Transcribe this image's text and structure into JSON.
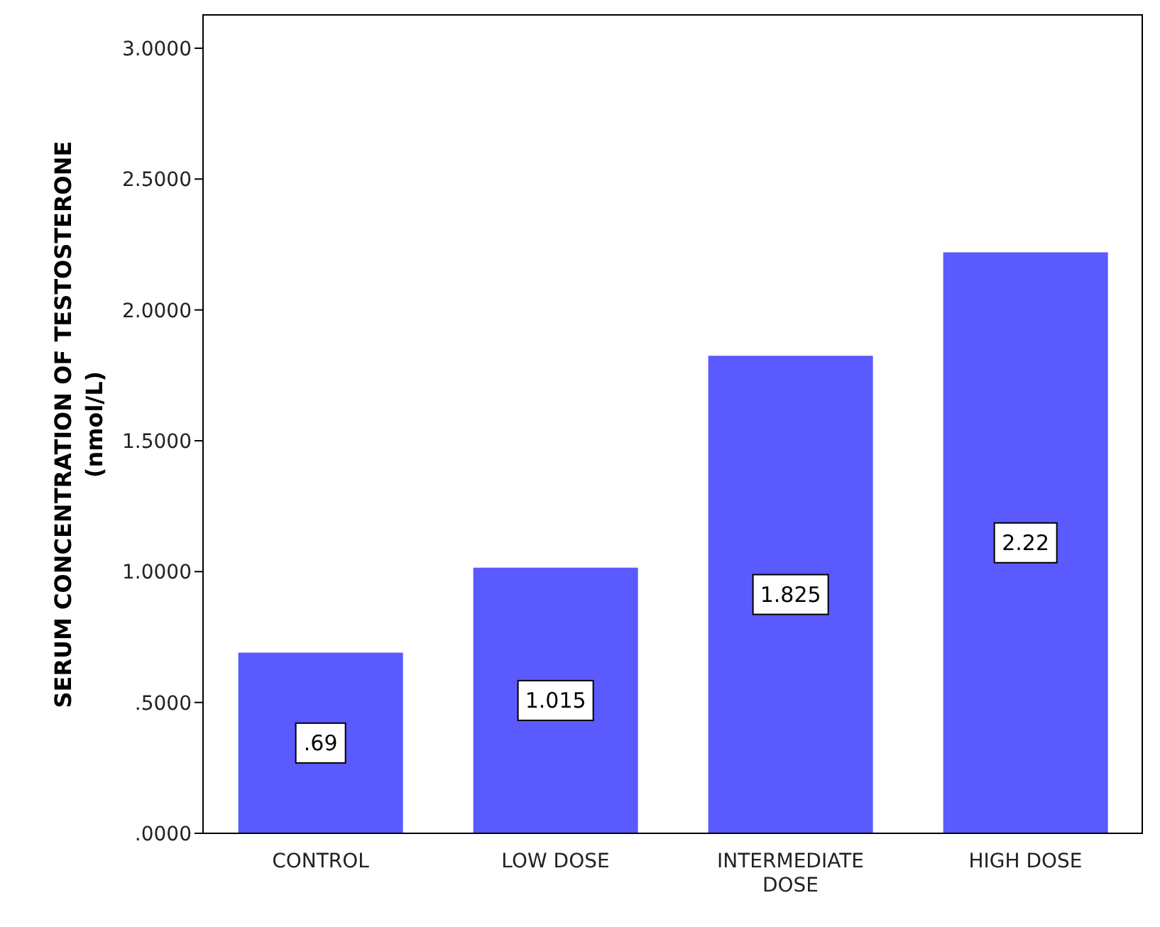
{
  "chart_data": {
    "type": "bar",
    "ylabel": "SERUM CONCENTRATION OF TESTOSTERONE (nmol/L)",
    "categories": [
      "CONTROL",
      "LOW DOSE",
      "INTERMEDIATE DOSE",
      "HIGH DOSE"
    ],
    "values": [
      0.69,
      1.015,
      1.825,
      2.22
    ],
    "value_labels": [
      ".69",
      "1.015",
      "1.825",
      "2.22"
    ],
    "color": "#5a5aff",
    "ylim": [
      0,
      3.13
    ],
    "yticks": [
      {
        "value": 0,
        "label": ".0000"
      },
      {
        "value": 0.5,
        "label": ".5000"
      },
      {
        "value": 1,
        "label": "1.0000"
      },
      {
        "value": 1.5,
        "label": "1.5000"
      },
      {
        "value": 2,
        "label": "2.0000"
      },
      {
        "value": 2.5,
        "label": "2.5000"
      },
      {
        "value": 3,
        "label": "3.0000"
      }
    ],
    "grid": false,
    "legend": false
  }
}
